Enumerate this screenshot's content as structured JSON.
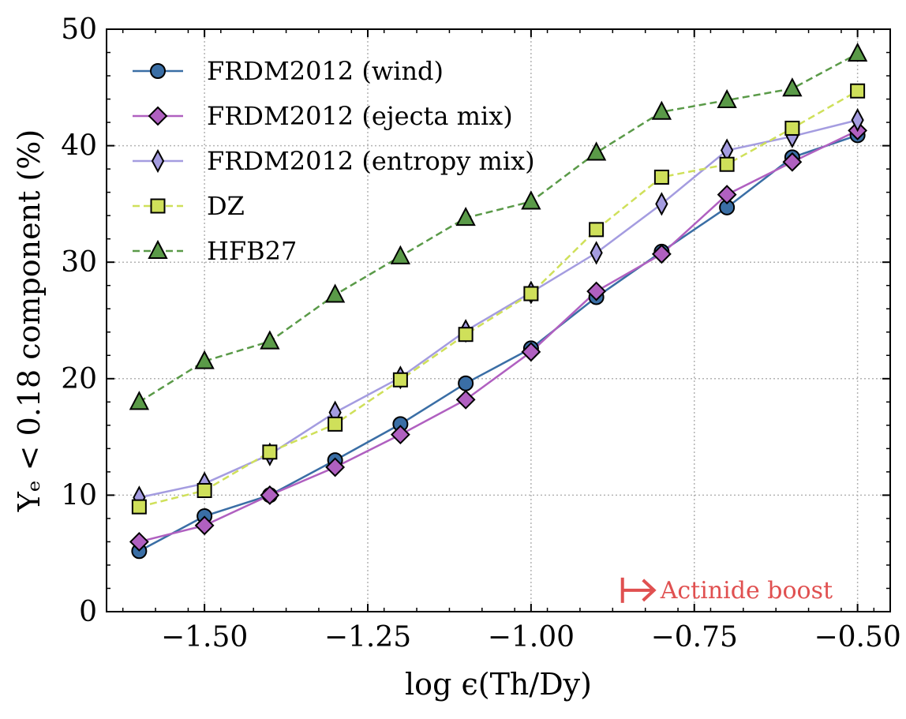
{
  "chart_data": {
    "type": "line",
    "xlabel": "log ϵ(Th/Dy)",
    "ylabel": "Yₑ < 0.18 component (%)",
    "xlim": [
      -1.65,
      -0.45
    ],
    "ylim": [
      0,
      50
    ],
    "x_ticks": [
      -1.5,
      -1.25,
      -1.0,
      -0.75,
      -0.5
    ],
    "x_tick_labels": [
      "−1.50",
      "−1.25",
      "−1.00",
      "−0.75",
      "−0.50"
    ],
    "y_ticks": [
      0,
      10,
      20,
      30,
      40,
      50
    ],
    "y_tick_labels": [
      "0",
      "10",
      "20",
      "30",
      "40",
      "50"
    ],
    "grid": true,
    "legend_position": "top-left",
    "x": [
      -1.6,
      -1.5,
      -1.4,
      -1.3,
      -1.2,
      -1.1,
      -1.0,
      -0.9,
      -0.8,
      -0.7,
      -0.6,
      -0.5
    ],
    "series": [
      {
        "name": "FRDM2012 (wind)",
        "marker": "circle",
        "dash": "solid",
        "color": "#3a6ea5",
        "values": [
          5.2,
          8.2,
          10.0,
          13.0,
          16.1,
          19.6,
          22.6,
          27.0,
          30.9,
          34.7,
          39.0,
          40.9
        ]
      },
      {
        "name": "FRDM2012 (ejecta mix)",
        "marker": "diamond",
        "dash": "solid",
        "color": "#b060c0",
        "values": [
          6.0,
          7.4,
          10.0,
          12.4,
          15.2,
          18.2,
          22.3,
          27.5,
          30.7,
          35.8,
          38.6,
          41.3
        ]
      },
      {
        "name": "FRDM2012 (entropy mix)",
        "marker": "thin-diamond",
        "dash": "solid",
        "color": "#a49ce0",
        "values": [
          9.8,
          11.0,
          13.5,
          17.1,
          20.1,
          24.1,
          27.4,
          30.8,
          35.0,
          39.6,
          40.8,
          42.2
        ]
      },
      {
        "name": "DZ",
        "marker": "square",
        "dash": "dashed",
        "color": "#cfe05a",
        "values": [
          9.0,
          10.4,
          13.7,
          16.1,
          19.9,
          23.8,
          27.3,
          32.8,
          37.3,
          38.4,
          41.5,
          44.7
        ]
      },
      {
        "name": "HFB27",
        "marker": "triangle",
        "dash": "dashed",
        "color": "#5a9a48",
        "values": [
          18.0,
          21.5,
          23.2,
          27.2,
          30.5,
          33.8,
          35.2,
          39.4,
          42.9,
          43.9,
          44.9,
          47.9
        ]
      }
    ],
    "annotation": {
      "text": "Actinide boost",
      "color": "#e05050",
      "x": -0.86,
      "y": 1.5
    }
  }
}
